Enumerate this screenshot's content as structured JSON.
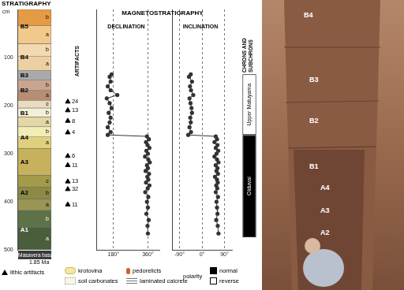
{
  "headers": {
    "magnetostratigraphy": "MAGNETOSTRATIGRAPHY"
  },
  "chart_data": [
    {
      "type": "bar",
      "title": "STRATIGRAPHY",
      "y_label": "cm",
      "ylim": [
        500,
        0
      ],
      "yticks": [
        100,
        200,
        300,
        400,
        500
      ],
      "tick_labels": "y",
      "grid": false,
      "units": [
        {
          "name": "B5",
          "layers": [
            {
              "label": "b",
              "top": 0,
              "bottom": 34,
              "color": "#e59a45"
            },
            {
              "label": "a",
              "top": 34,
              "bottom": 71,
              "color": "#f2c98a"
            }
          ]
        },
        {
          "name": "B4",
          "layers": [
            {
              "label": "b",
              "top": 71,
              "bottom": 98,
              "color": "#f3d9b0"
            },
            {
              "label": "a",
              "top": 98,
              "bottom": 127,
              "color": "#ecd0a2"
            }
          ]
        },
        {
          "name": "B3",
          "layers": [
            {
              "top": 127,
              "bottom": 147,
              "color": "#a9a9a9"
            }
          ]
        },
        {
          "name": "B2",
          "layers": [
            {
              "label": "b",
              "top": 147,
              "bottom": 168,
              "color": "#c9a58e"
            },
            {
              "label": "a",
              "top": 168,
              "bottom": 189,
              "color": "#b98c74"
            }
          ]
        },
        {
          "name": "B1",
          "layers": [
            {
              "label": "c",
              "top": 189,
              "bottom": 205,
              "color": "#e9dcc0"
            },
            {
              "label": "b",
              "top": 205,
              "bottom": 224,
              "color": "#f4efd6"
            },
            {
              "label": "a",
              "top": 224,
              "bottom": 244,
              "color": "#e3d7a6"
            }
          ]
        },
        {
          "name": "A4",
          "layers": [
            {
              "label": "b",
              "top": 244,
              "bottom": 265,
              "color": "#f2ecb5"
            },
            {
              "label": "a",
              "top": 265,
              "bottom": 289,
              "color": "#e0d07e"
            }
          ]
        },
        {
          "name": "A3",
          "layers": [
            {
              "top": 289,
              "bottom": 345,
              "color": "#c6b25c"
            }
          ]
        },
        {
          "name": "A2",
          "layers": [
            {
              "label": "c",
              "top": 345,
              "bottom": 369,
              "color": "#a39a4a"
            },
            {
              "label": "b",
              "top": 369,
              "bottom": 394,
              "color": "#8c8a44"
            },
            {
              "label": "a",
              "top": 394,
              "bottom": 418,
              "color": "#9a9455"
            }
          ]
        },
        {
          "name": "A1",
          "layers": [
            {
              "label": "b",
              "top": 418,
              "bottom": 453,
              "color": "#5d7248"
            },
            {
              "label": "a",
              "top": 453,
              "bottom": 500,
              "color": "#4a5e3c"
            }
          ]
        }
      ],
      "basalt": {
        "label": "Masavera basalt",
        "age": "1.85 Ma",
        "color": "#3a3a3a"
      },
      "artifacts": {
        "title": "ARTIFACTS",
        "marker": "triangle",
        "color": "#000000",
        "depths": [
          192,
          210,
          232,
          256,
          305,
          324,
          358,
          374,
          406
        ],
        "counts": [
          24,
          13,
          8,
          4,
          6,
          11,
          13,
          32,
          11
        ]
      }
    },
    {
      "type": "scatter",
      "title": "DECLINATION",
      "marker": "circle",
      "line_style": "solid",
      "color": "#333333",
      "grid": true,
      "tick_labels": "x",
      "xlim": [
        90,
        420
      ],
      "xticks": [
        {
          "value": 180,
          "label": "180°"
        },
        {
          "value": 360,
          "label": "360°"
        }
      ],
      "ylim": [
        500,
        0
      ],
      "y": [
        135,
        140,
        150,
        160,
        168,
        178,
        185,
        195,
        205,
        215,
        225,
        235,
        245,
        255,
        261,
        264,
        270,
        276,
        282,
        288,
        294,
        300,
        306,
        312,
        318,
        324,
        330,
        336,
        342,
        348,
        354,
        360,
        366,
        372,
        380,
        390,
        400,
        412,
        425,
        438,
        450,
        466
      ],
      "x": [
        170,
        160,
        165,
        150,
        165,
        200,
        145,
        160,
        170,
        155,
        165,
        160,
        150,
        165,
        150,
        355,
        365,
        350,
        358,
        368,
        352,
        360,
        345,
        362,
        370,
        355,
        360,
        348,
        366,
        357,
        362,
        350,
        368,
        359,
        346,
        362,
        355,
        360,
        352,
        364,
        358,
        360
      ]
    },
    {
      "type": "scatter",
      "title": "INCLINATION",
      "marker": "circle",
      "line_style": "solid",
      "color": "#333333",
      "grid": true,
      "tick_labels": "x",
      "xlim": [
        -120,
        120
      ],
      "xticks": [
        {
          "value": -90,
          "label": "-90°"
        },
        {
          "value": 0,
          "label": "0°"
        },
        {
          "value": 90,
          "label": "90°"
        }
      ],
      "ylim": [
        500,
        0
      ],
      "y": [
        135,
        140,
        150,
        160,
        168,
        178,
        185,
        195,
        205,
        215,
        225,
        235,
        245,
        255,
        261,
        264,
        270,
        276,
        282,
        288,
        294,
        300,
        306,
        312,
        318,
        324,
        330,
        336,
        342,
        348,
        354,
        360,
        366,
        372,
        380,
        390,
        400,
        412,
        425,
        438,
        450,
        466
      ],
      "x": [
        -45,
        -52,
        -40,
        -48,
        -44,
        -35,
        -50,
        -46,
        -42,
        -40,
        -47,
        -45,
        -50,
        -44,
        -55,
        55,
        60,
        50,
        62,
        55,
        65,
        58,
        50,
        60,
        66,
        55,
        62,
        58,
        64,
        52,
        60,
        63,
        57,
        61,
        55,
        64,
        58,
        60,
        62,
        57,
        63,
        66
      ]
    },
    {
      "type": "bar",
      "title": "CHRONS AND SUBCHRONS",
      "ylim": [
        500,
        0
      ],
      "tick_labels": false,
      "intervals": [
        {
          "top": 135,
          "bottom": 261,
          "polarity": "reverse",
          "label": "Upper Matuyama",
          "color": "#ffffff"
        },
        {
          "top": 261,
          "bottom": 474,
          "polarity": "normal",
          "label": "Olduvai",
          "color": "#000000"
        }
      ]
    }
  ],
  "legend": {
    "items": [
      "lithic artifacts",
      "krotovina",
      "soil carbonates",
      "pedorelicts",
      "laminated calcrete"
    ],
    "polarity": {
      "title": "polarity",
      "items": [
        {
          "label": "normal",
          "color": "#000000"
        },
        {
          "label": "reverse",
          "color": "#ffffff"
        }
      ]
    }
  },
  "photo": {
    "labels": [
      "B4",
      "B3",
      "B2",
      "B1",
      "A4",
      "A3",
      "A2"
    ]
  }
}
